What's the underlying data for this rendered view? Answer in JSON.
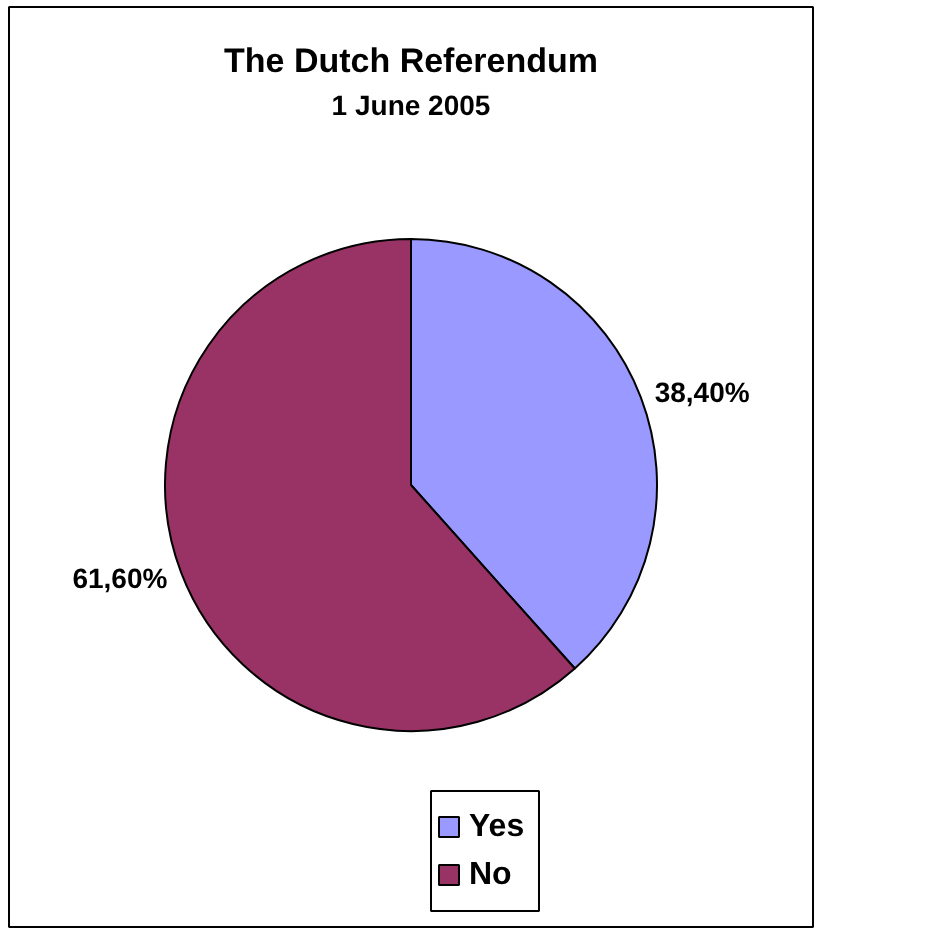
{
  "chart_data": {
    "type": "pie",
    "title": "The Dutch Referendum",
    "subtitle": "1 June 2005",
    "categories": [
      "Yes",
      "No"
    ],
    "values": [
      38.4,
      61.6
    ],
    "colors": [
      "#9999ff",
      "#993366"
    ],
    "value_labels": [
      "38,40%",
      "61,60%"
    ],
    "legend": "bottom"
  }
}
